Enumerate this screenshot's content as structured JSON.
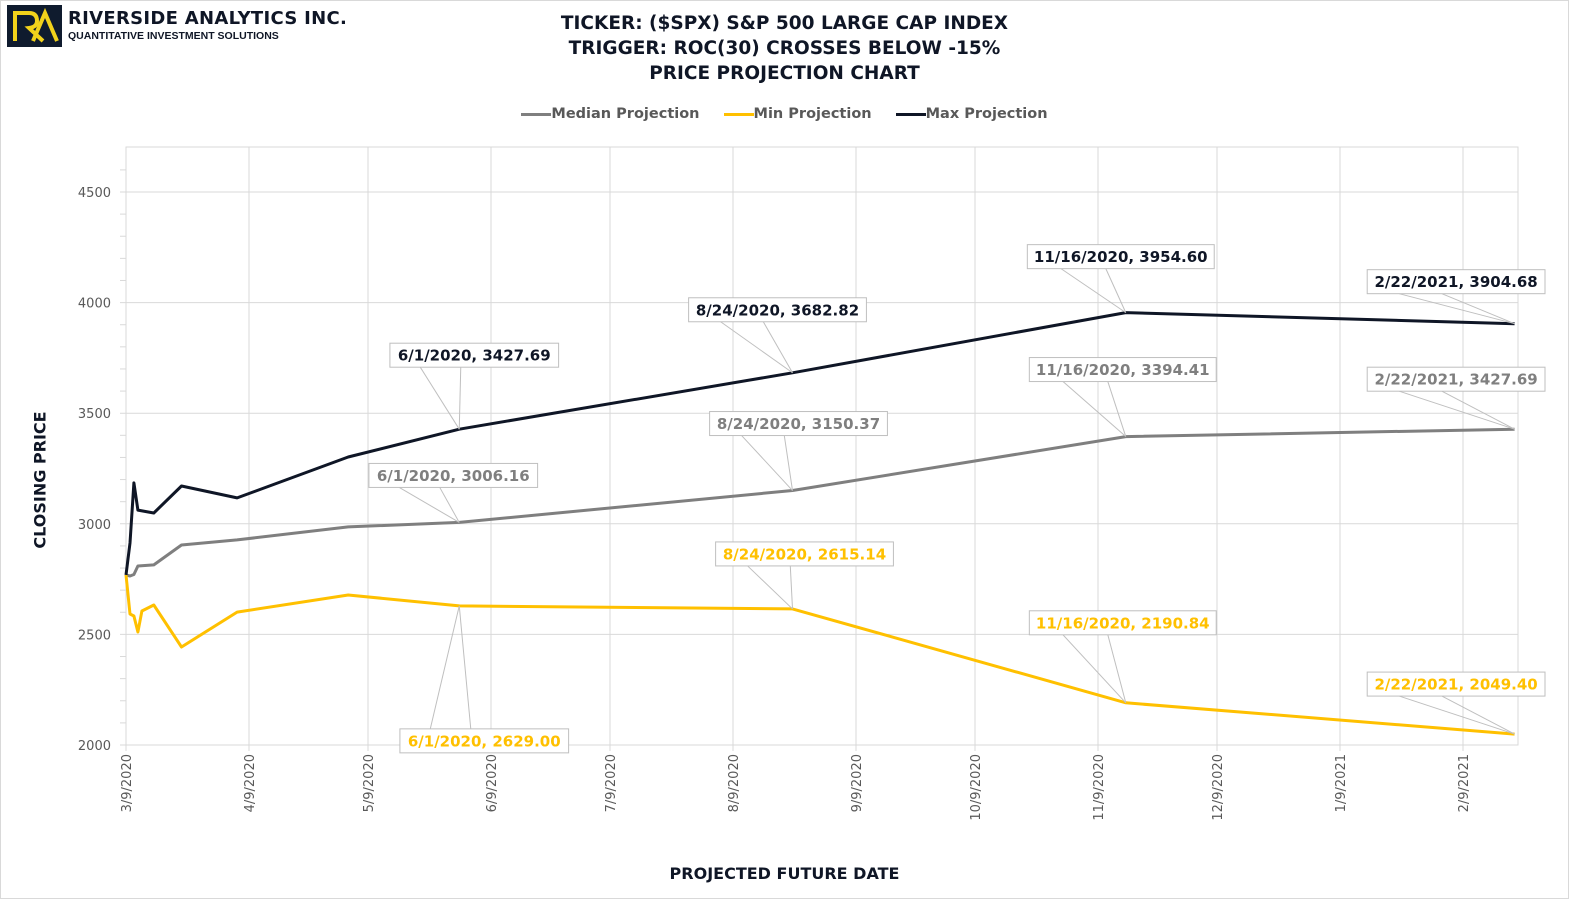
{
  "header": {
    "company_name": "RIVERSIDE ANALYTICS INC.",
    "company_tagline": "QUANTITATIVE INVESTMENT SOLUTIONS",
    "logo_text": "RA",
    "colors": {
      "logo_bg": "#0f1b2e",
      "logo_accent": "#f2d21b"
    }
  },
  "chart_data": {
    "type": "line",
    "title": [
      "TICKER: ($SPX) S&P 500 LARGE CAP INDEX",
      "TRIGGER: ROC(30) CROSSES BELOW -15%",
      "PRICE PROJECTION CHART"
    ],
    "xlabel": "PROJECTED FUTURE DATE",
    "ylabel": "CLOSING PRICE",
    "ylim": [
      2000,
      4700
    ],
    "yticks": [
      2000,
      2500,
      3000,
      3500,
      4000,
      4500
    ],
    "xlim": [
      "3/9/2020",
      "2/22/2021"
    ],
    "xticks": [
      "3/9/2020",
      "4/9/2020",
      "5/9/2020",
      "6/9/2020",
      "7/9/2020",
      "8/9/2020",
      "9/9/2020",
      "10/9/2020",
      "11/9/2020",
      "12/9/2020",
      "1/9/2021",
      "2/9/2021"
    ],
    "grid": true,
    "legend_position": "top-center",
    "series": [
      {
        "name": "Median Projection",
        "color": "#7f7f7f",
        "points": [
          {
            "date": "3/9/2020",
            "value": 2769
          },
          {
            "date": "3/10/2020",
            "value": 2764
          },
          {
            "date": "3/11/2020",
            "value": 2771
          },
          {
            "date": "3/12/2020",
            "value": 2809
          },
          {
            "date": "3/16/2020",
            "value": 2814
          },
          {
            "date": "3/23/2020",
            "value": 2904
          },
          {
            "date": "4/6/2020",
            "value": 2927
          },
          {
            "date": "5/4/2020",
            "value": 2986
          },
          {
            "date": "6/1/2020",
            "value": 3006.16
          },
          {
            "date": "8/24/2020",
            "value": 3150.37
          },
          {
            "date": "11/16/2020",
            "value": 3394.41
          },
          {
            "date": "2/22/2021",
            "value": 3427.69
          }
        ],
        "annotations": [
          {
            "text": "6/1/2020, 3006.16",
            "date": "6/1/2020"
          },
          {
            "text": "8/24/2020, 3150.37",
            "date": "8/24/2020"
          },
          {
            "text": "11/16/2020, 3394.41",
            "date": "11/16/2020"
          },
          {
            "text": "2/22/2021, 3427.69",
            "date": "2/22/2021"
          }
        ]
      },
      {
        "name": "Min Projection",
        "color": "#ffc000",
        "points": [
          {
            "date": "3/9/2020",
            "value": 2769
          },
          {
            "date": "3/10/2020",
            "value": 2592
          },
          {
            "date": "3/11/2020",
            "value": 2583
          },
          {
            "date": "3/12/2020",
            "value": 2511
          },
          {
            "date": "3/13/2020",
            "value": 2606
          },
          {
            "date": "3/16/2020",
            "value": 2633
          },
          {
            "date": "3/23/2020",
            "value": 2443
          },
          {
            "date": "4/6/2020",
            "value": 2601
          },
          {
            "date": "5/4/2020",
            "value": 2678
          },
          {
            "date": "6/1/2020",
            "value": 2629.0
          },
          {
            "date": "8/24/2020",
            "value": 2615.14
          },
          {
            "date": "11/16/2020",
            "value": 2190.84
          },
          {
            "date": "2/22/2021",
            "value": 2049.4
          }
        ],
        "annotations": [
          {
            "text": "6/1/2020, 2629.00",
            "date": "6/1/2020"
          },
          {
            "text": "8/24/2020, 2615.14",
            "date": "8/24/2020"
          },
          {
            "text": "11/16/2020, 2190.84",
            "date": "11/16/2020"
          },
          {
            "text": "2/22/2021, 2049.40",
            "date": "2/22/2021"
          }
        ]
      },
      {
        "name": "Max Projection",
        "color": "#0f1626",
        "points": [
          {
            "date": "3/9/2020",
            "value": 2769
          },
          {
            "date": "3/10/2020",
            "value": 2913
          },
          {
            "date": "3/11/2020",
            "value": 3185
          },
          {
            "date": "3/12/2020",
            "value": 3062
          },
          {
            "date": "3/16/2020",
            "value": 3049
          },
          {
            "date": "3/23/2020",
            "value": 3171
          },
          {
            "date": "4/6/2020",
            "value": 3117
          },
          {
            "date": "5/4/2020",
            "value": 3302
          },
          {
            "date": "6/1/2020",
            "value": 3427.69
          },
          {
            "date": "8/24/2020",
            "value": 3682.82
          },
          {
            "date": "11/16/2020",
            "value": 3954.6
          },
          {
            "date": "2/22/2021",
            "value": 3904.68
          }
        ],
        "annotations": [
          {
            "text": "6/1/2020, 3427.69",
            "date": "6/1/2020"
          },
          {
            "text": "8/24/2020, 3682.82",
            "date": "8/24/2020"
          },
          {
            "text": "11/16/2020, 3954.60",
            "date": "11/16/2020"
          },
          {
            "text": "2/22/2021, 3904.68",
            "date": "2/22/2021"
          }
        ]
      }
    ]
  }
}
